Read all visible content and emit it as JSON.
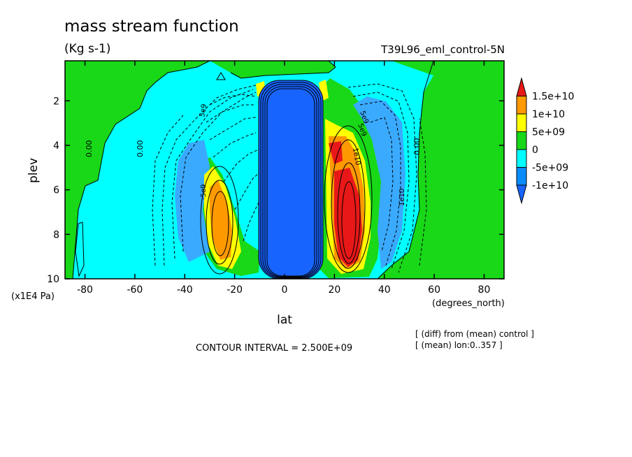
{
  "chart_data": {
    "type": "heatmap",
    "title": "mass stream function",
    "units": "(Kg s-1)",
    "dataset": "T39L96_eml_control-5N",
    "xlabel": "lat",
    "x_units": "(degrees_north)",
    "ylabel": "plev",
    "y_units": "(x1E4 Pa)",
    "xlim": [
      -88,
      88
    ],
    "ylim": [
      10,
      0.2
    ],
    "x_ticks": [
      -80,
      -60,
      -40,
      -20,
      0,
      20,
      40,
      60,
      80
    ],
    "x_tick_labels": [
      "-80",
      "-60",
      "-40",
      "-20",
      "0",
      "20",
      "40",
      "60",
      "80"
    ],
    "y_ticks": [
      2,
      4,
      6,
      8,
      10
    ],
    "y_tick_labels": [
      "2",
      "4",
      "6",
      "8",
      "10"
    ],
    "colorbar": {
      "labels": [
        "1.5e+10",
        "1e+10",
        "5e+09",
        "0",
        "-5e+09",
        "-1e+10"
      ],
      "colors": [
        "#e81818",
        "#ff9900",
        "#ffff00",
        "#18d818",
        "#00ffff",
        "#0a8cff",
        "#1864ff"
      ]
    },
    "contour_interval": "CONTOUR INTERVAL = 2.500E+09",
    "notes": [
      "[ (diff) from (mean) control ]",
      "[ (mean) lon:0..357 ]"
    ],
    "contour_labels": [
      "0.00",
      "0.00",
      "0.00",
      "5e9",
      "-5e9",
      "5e9",
      "1e10",
      "5e9",
      "1e10"
    ],
    "regions": [
      {
        "name": "central negative cell",
        "level": "-1e+10",
        "lat": [
          -10,
          14
        ],
        "plev": [
          1.2,
          10
        ]
      },
      {
        "name": "southern positive cell",
        "level": "1e+10",
        "lat": [
          -31,
          -23
        ],
        "plev": [
          5.6,
          9.0
        ]
      },
      {
        "name": "northern positive cell",
        "level": "1.5e+10",
        "lat": [
          19,
          31
        ],
        "plev": [
          5.0,
          9.5
        ]
      },
      {
        "name": "southern negative band",
        "level": "-5e+09",
        "lat": [
          -44,
          -22
        ],
        "plev": [
          2.5,
          9.2
        ]
      },
      {
        "name": "northern negative band",
        "level": "-5e+09",
        "lat": [
          34,
          52
        ],
        "plev": [
          1.7,
          9.2
        ]
      }
    ]
  }
}
